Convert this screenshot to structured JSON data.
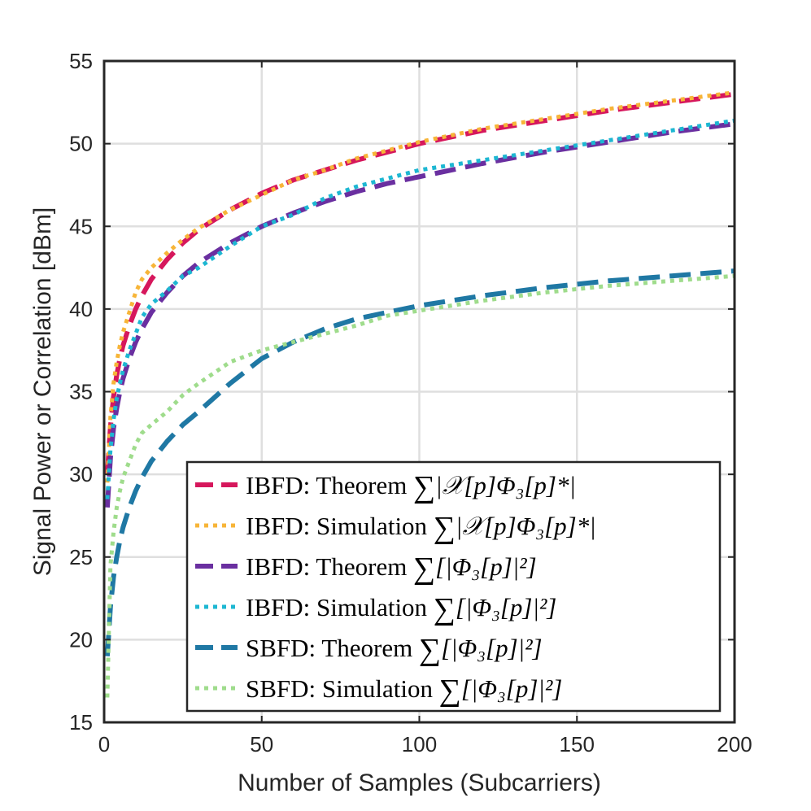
{
  "chart_data": {
    "type": "line",
    "title": "",
    "xlabel": "Number of Samples (Subcarriers)",
    "ylabel": "Signal Power or Correlation [dBm]",
    "xlim": [
      0,
      200
    ],
    "ylim": [
      15,
      55
    ],
    "xticks": [
      0,
      50,
      100,
      150,
      200
    ],
    "yticks": [
      15,
      20,
      25,
      30,
      35,
      40,
      45,
      50,
      55
    ],
    "grid": true,
    "legend_position": "bottom-right",
    "series": [
      {
        "name": "IBFD: Theorem ∑|𝒳[p]Φ₃[p]*|",
        "color": "#d6175c",
        "style": "dashed",
        "x": [
          1,
          2,
          3,
          4,
          5,
          6,
          8,
          10,
          12,
          15,
          20,
          25,
          30,
          40,
          50,
          60,
          70,
          80,
          90,
          100,
          120,
          140,
          160,
          180,
          200
        ],
        "y": [
          30.0,
          32.9,
          34.7,
          36.0,
          37.0,
          37.8,
          39.0,
          40.0,
          40.8,
          41.8,
          43.0,
          44.0,
          44.8,
          46.0,
          47.0,
          47.8,
          48.4,
          49.0,
          49.5,
          50.0,
          50.8,
          51.4,
          52.0,
          52.5,
          53.0
        ]
      },
      {
        "name": "IBFD: Simulation ∑|𝒳[p]Φ₃[p]*|",
        "color": "#f7b538",
        "style": "dotted",
        "x": [
          1,
          2,
          3,
          4,
          5,
          6,
          8,
          10,
          12,
          15,
          20,
          25,
          30,
          40,
          50,
          60,
          70,
          80,
          90,
          100,
          120,
          140,
          160,
          180,
          200
        ],
        "y": [
          29.5,
          33.5,
          35.5,
          36.8,
          37.8,
          38.6,
          39.8,
          41.0,
          41.8,
          42.5,
          43.4,
          44.2,
          44.9,
          46.0,
          46.9,
          47.8,
          48.4,
          49.1,
          49.6,
          50.1,
          50.9,
          51.5,
          52.1,
          52.6,
          53.1
        ]
      },
      {
        "name": "IBFD: Theorem ∑[|Φ₃[p]|²]",
        "color": "#6a2fa0",
        "style": "dashed",
        "x": [
          1,
          2,
          3,
          4,
          5,
          6,
          8,
          10,
          12,
          15,
          20,
          25,
          30,
          40,
          50,
          60,
          70,
          80,
          90,
          100,
          120,
          140,
          160,
          180,
          200
        ],
        "y": [
          28.0,
          31.0,
          32.8,
          34.0,
          35.0,
          35.8,
          37.0,
          38.0,
          38.8,
          39.8,
          41.0,
          42.0,
          42.8,
          44.0,
          45.0,
          45.8,
          46.5,
          47.1,
          47.6,
          48.0,
          48.8,
          49.5,
          50.1,
          50.7,
          51.2
        ]
      },
      {
        "name": "IBFD: Simulation ∑[|Φ₃[p]|²]",
        "color": "#1db7d2",
        "style": "dotted",
        "x": [
          1,
          2,
          3,
          4,
          5,
          6,
          8,
          10,
          12,
          15,
          20,
          25,
          30,
          40,
          50,
          60,
          70,
          80,
          90,
          100,
          120,
          140,
          160,
          180,
          200
        ],
        "y": [
          28.5,
          31.5,
          33.3,
          34.6,
          35.5,
          36.3,
          37.5,
          38.5,
          39.5,
          40.3,
          41.1,
          42.0,
          42.5,
          43.8,
          45.0,
          45.7,
          46.7,
          47.4,
          47.9,
          48.4,
          49.0,
          49.6,
          50.2,
          50.8,
          51.4
        ]
      },
      {
        "name": "SBFD: Theorem ∑[|Φ₃[p]|²]",
        "color": "#1f78a4",
        "style": "dashed",
        "x": [
          1,
          2,
          3,
          4,
          5,
          6,
          8,
          10,
          12,
          15,
          20,
          25,
          30,
          40,
          50,
          60,
          70,
          80,
          90,
          100,
          120,
          140,
          160,
          180,
          200
        ],
        "y": [
          19.0,
          22.0,
          23.8,
          25.0,
          26.0,
          26.8,
          28.0,
          29.0,
          29.8,
          30.8,
          32.0,
          33.0,
          33.8,
          35.5,
          37.0,
          38.0,
          38.8,
          39.4,
          39.8,
          40.2,
          40.8,
          41.3,
          41.7,
          42.0,
          42.3
        ]
      },
      {
        "name": "SBFD: Simulation ∑[|Φ₃[p]|²]",
        "color": "#9fdc8c",
        "style": "dotted",
        "x": [
          1,
          2,
          3,
          4,
          5,
          6,
          8,
          10,
          12,
          15,
          20,
          25,
          30,
          40,
          50,
          60,
          70,
          80,
          90,
          100,
          120,
          140,
          160,
          180,
          200
        ],
        "y": [
          16.5,
          24.5,
          26.5,
          28.0,
          29.0,
          29.8,
          30.8,
          31.8,
          32.5,
          33.0,
          33.8,
          34.8,
          35.5,
          36.8,
          37.5,
          38.0,
          38.5,
          39.0,
          39.6,
          39.9,
          40.5,
          41.0,
          41.4,
          41.7,
          42.0
        ]
      }
    ]
  },
  "legend": {
    "entries": [
      {
        "prefix": "IBFD: Theorem ",
        "expr": "|𝒳[p]Φ₃[p]*|"
      },
      {
        "prefix": "IBFD: Simulation ",
        "expr": "|𝒳[p]Φ₃[p]*|"
      },
      {
        "prefix": "IBFD: Theorem ",
        "expr": "[|Φ₃[p]|²]"
      },
      {
        "prefix": "IBFD: Simulation ",
        "expr": "[|Φ₃[p]|²]"
      },
      {
        "prefix": "SBFD: Theorem ",
        "expr": "[|Φ₃[p]|²]"
      },
      {
        "prefix": "SBFD: Simulation ",
        "expr": "[|Φ₃[p]|²]"
      }
    ],
    "sum_symbol": "∑"
  }
}
